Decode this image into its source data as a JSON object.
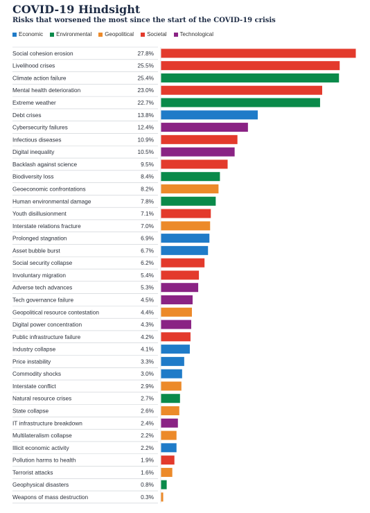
{
  "title": "COVID-19 Hindsight",
  "subtitle": "Risks that worsened the most since the start of the COVID-19 crisis",
  "colors": {
    "Economic": "#1f7bc8",
    "Environmental": "#0a8a4a",
    "Geopolitical": "#ec8a2a",
    "Societal": "#e33a2c",
    "Technological": "#8a2384"
  },
  "legend": [
    "Economic",
    "Environmental",
    "Geopolitical",
    "Societal",
    "Technological"
  ],
  "chart_data": {
    "type": "bar",
    "orientation": "horizontal",
    "title": "COVID-19 Hindsight",
    "subtitle": "Risks that worsened the most since the start of the COVID-19 crisis",
    "xlim": [
      0,
      27.8
    ],
    "grid": false,
    "legend_position": "top-left",
    "categories": [
      "Social cohesion erosion",
      "Livelihood crises",
      "Climate action failure",
      "Mental health deterioration",
      "Extreme weather",
      "Debt crises",
      "Cybersecurity failures",
      "Infectious diseases",
      "Digital inequality",
      "Backlash against science",
      "Biodiversity loss",
      "Geoeconomic confrontations",
      "Human environmental damage",
      "Youth disillusionment",
      "Interstate relations fracture",
      "Prolonged stagnation",
      "Asset bubble burst",
      "Social security collapse",
      "Involuntary migration",
      "Adverse tech advances",
      "Tech governance failure",
      "Geopolitical resource contestation",
      "Digital power concentration",
      "Public infrastructure failure",
      "Industry collapse",
      "Price instability",
      "Commodity shocks",
      "Interstate conflict",
      "Natural resource crises",
      "State collapse",
      "IT infrastructure breakdown",
      "Multilateralism collapse",
      "Illicit economic activity",
      "Pollution harms to health",
      "Terrorist attacks",
      "Geophysical disasters",
      "Weapons of mass destruction"
    ],
    "values": [
      27.8,
      25.5,
      25.4,
      23.0,
      22.7,
      13.8,
      12.4,
      10.9,
      10.5,
      9.5,
      8.4,
      8.2,
      7.8,
      7.1,
      7.0,
      6.9,
      6.7,
      6.2,
      5.4,
      5.3,
      4.5,
      4.4,
      4.3,
      4.2,
      4.1,
      3.3,
      3.0,
      2.9,
      2.7,
      2.6,
      2.4,
      2.2,
      2.2,
      1.9,
      1.6,
      0.8,
      0.3
    ],
    "value_labels": [
      "27.8%",
      "25.5%",
      "25.4%",
      "23.0%",
      "22.7%",
      "13.8%",
      "12.4%",
      "10.9%",
      "10.5%",
      "9.5%",
      "8.4%",
      "8.2%",
      "7.8%",
      "7.1%",
      "7.0%",
      "6.9%",
      "6.7%",
      "6.2%",
      "5.4%",
      "5.3%",
      "4.5%",
      "4.4%",
      "4.3%",
      "4.2%",
      "4.1%",
      "3.3%",
      "3.0%",
      "2.9%",
      "2.7%",
      "2.6%",
      "2.4%",
      "2.2%",
      "2.2%",
      "1.9%",
      "1.6%",
      "0.8%",
      "0.3%"
    ],
    "groups": [
      "Societal",
      "Societal",
      "Environmental",
      "Societal",
      "Environmental",
      "Economic",
      "Technological",
      "Societal",
      "Technological",
      "Societal",
      "Environmental",
      "Geopolitical",
      "Environmental",
      "Societal",
      "Geopolitical",
      "Economic",
      "Economic",
      "Societal",
      "Societal",
      "Technological",
      "Technological",
      "Geopolitical",
      "Technological",
      "Societal",
      "Economic",
      "Economic",
      "Economic",
      "Geopolitical",
      "Environmental",
      "Geopolitical",
      "Technological",
      "Geopolitical",
      "Economic",
      "Societal",
      "Geopolitical",
      "Environmental",
      "Geopolitical"
    ]
  }
}
